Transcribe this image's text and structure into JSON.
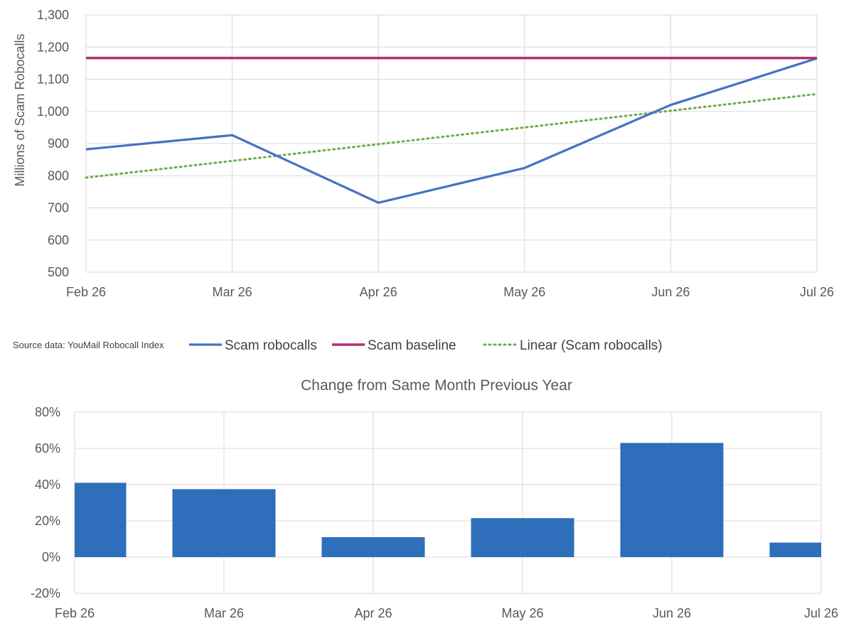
{
  "source_note": "Source data: YouMail Robocall Index",
  "colors": {
    "scam_line": "#4472C4",
    "baseline": "#B0306E",
    "trend": "#70AD47",
    "bars": "#2E6EBA",
    "grid": "#D9D9D9",
    "text": "#595959"
  },
  "chart_data": [
    {
      "type": "line",
      "title": "",
      "xlabel": "",
      "ylabel": "Millions of Scam Robocalls",
      "categories": [
        "Feb 26",
        "Mar 26",
        "Apr 26",
        "May 26",
        "Jun 26",
        "Jul 26"
      ],
      "ylim": [
        500,
        1300
      ],
      "yticks": [
        500,
        600,
        700,
        800,
        900,
        1000,
        1100,
        1200,
        1300
      ],
      "ytick_labels": [
        "500",
        "600",
        "700",
        "800",
        "900",
        "1,000",
        "1,100",
        "1,200",
        "1,300"
      ],
      "grid": true,
      "legend_position": "bottom",
      "series": [
        {
          "name": "Scam robocalls",
          "style": "solid",
          "values": [
            882,
            926,
            716,
            824,
            1020,
            1165
          ]
        },
        {
          "name": "Scam baseline",
          "style": "solid",
          "values": [
            1166,
            1166,
            1166,
            1166,
            1166,
            1166
          ]
        },
        {
          "name": "Linear (Scam robocalls)",
          "style": "dotted",
          "values": [
            794,
            846,
            898,
            950,
            1002,
            1054
          ]
        }
      ]
    },
    {
      "type": "bar",
      "title": "Change from Same Month Previous Year",
      "xlabel": "",
      "ylabel": "",
      "categories": [
        "Feb 26",
        "Mar 26",
        "Apr 26",
        "May 26",
        "Jun 26",
        "Jul 26"
      ],
      "ylim": [
        -0.2,
        0.8
      ],
      "yticks": [
        -0.2,
        0,
        0.2,
        0.4,
        0.6,
        0.8
      ],
      "ytick_labels": [
        "-20%",
        "0%",
        "20%",
        "40%",
        "60%",
        "80%"
      ],
      "grid": true,
      "values": [
        0.41,
        0.375,
        0.11,
        0.215,
        0.63,
        0.08
      ]
    }
  ]
}
